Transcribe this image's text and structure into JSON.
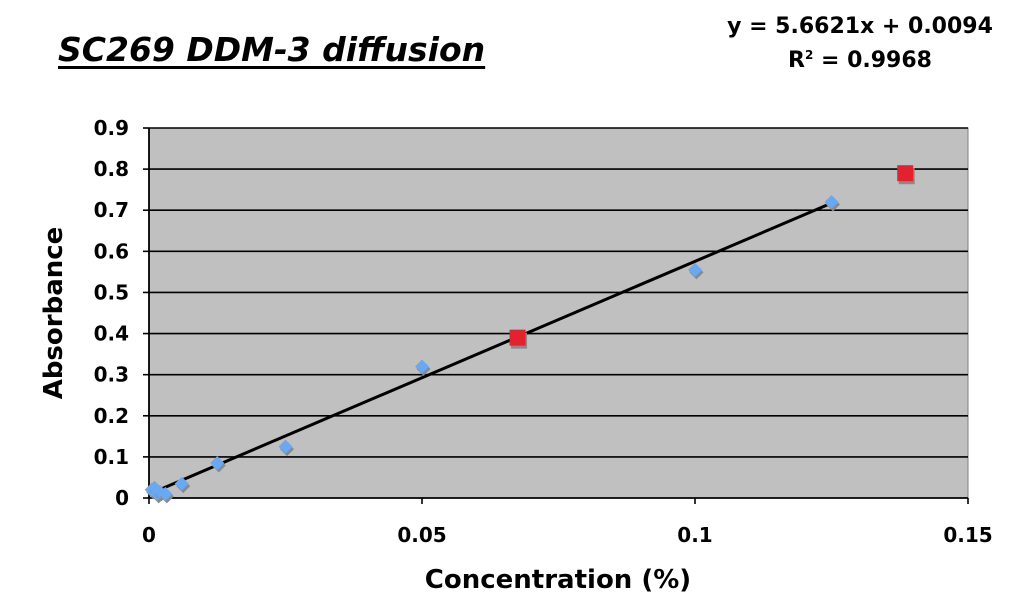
{
  "chart_data": {
    "type": "scatter",
    "title": "SC269 DDM-3 diffusion",
    "xlabel": "Concentration (%)",
    "ylabel": "Absorbance",
    "xlim": [
      0,
      0.15
    ],
    "ylim": [
      0,
      0.9
    ],
    "x_ticks": [
      "0",
      "0.05",
      "0.1",
      "0.15"
    ],
    "y_ticks": [
      "0",
      "0.1",
      "0.2",
      "0.3",
      "0.4",
      "0.5",
      "0.6",
      "0.7",
      "0.8",
      "0.9"
    ],
    "grid": "horizontal",
    "plot_background": "#c0c0c0",
    "series": [
      {
        "marker": "diamond",
        "color": "#6aa8f2",
        "points": [
          {
            "x": 0.0005,
            "y": 0.02
          },
          {
            "x": 0.001,
            "y": 0.025
          },
          {
            "x": 0.0015,
            "y": 0.01
          },
          {
            "x": 0.002,
            "y": 0.015
          },
          {
            "x": 0.003,
            "y": 0.01
          },
          {
            "x": 0.006,
            "y": 0.035
          },
          {
            "x": 0.0125,
            "y": 0.085
          },
          {
            "x": 0.025,
            "y": 0.125
          },
          {
            "x": 0.05,
            "y": 0.32
          },
          {
            "x": 0.1,
            "y": 0.555
          },
          {
            "x": 0.125,
            "y": 0.72
          }
        ]
      },
      {
        "marker": "square",
        "color": "#e0232e",
        "points": [
          {
            "x": 0.0675,
            "y": 0.39
          },
          {
            "x": 0.1385,
            "y": 0.79
          }
        ]
      }
    ],
    "trendline": {
      "slope": 5.6621,
      "intercept": 0.0094,
      "x_range": [
        0.0005,
        0.125
      ],
      "color": "#000000",
      "equation": "y = 5.6621x + 0.0094",
      "r2_prefix": "R",
      "r2_exponent": "2",
      "r2_value": " = 0.9968"
    }
  }
}
